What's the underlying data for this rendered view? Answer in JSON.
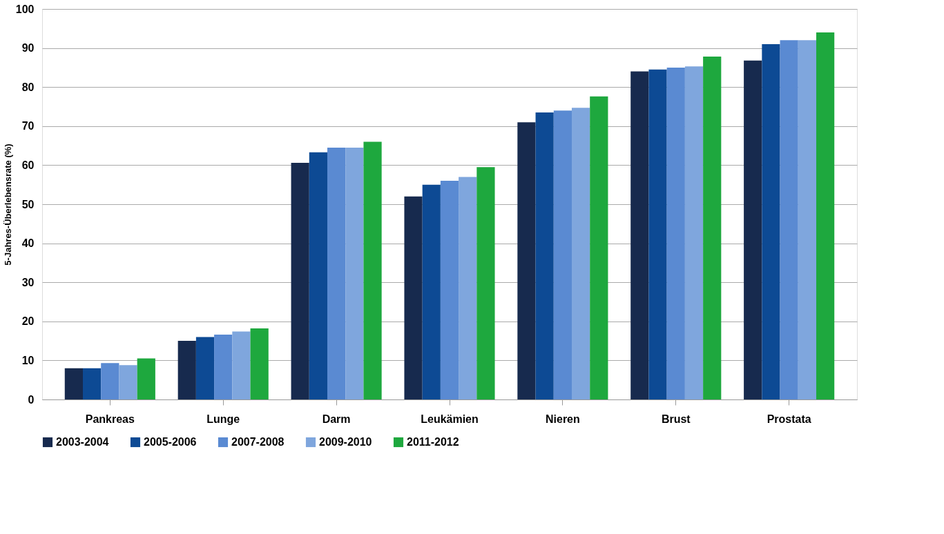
{
  "chart_data": {
    "type": "bar",
    "ylabel": "5-Jahres-Überlebensrate (%)",
    "categories": [
      "Pankreas",
      "Lunge",
      "Darm",
      "Leukämien",
      "Nieren",
      "Brust",
      "Prostata"
    ],
    "series": [
      {
        "name": "2003-2004",
        "color": "#172a4e",
        "values": [
          8,
          15,
          60.6,
          52,
          71,
          84,
          86.8
        ]
      },
      {
        "name": "2005-2006",
        "color": "#0d4a94",
        "values": [
          8,
          16,
          63.3,
          55,
          73.5,
          84.5,
          91
        ]
      },
      {
        "name": "2007-2008",
        "color": "#5a8ad2",
        "values": [
          9.3,
          16.6,
          64.5,
          56,
          74,
          85,
          92
        ]
      },
      {
        "name": "2009-2010",
        "color": "#7fa6dd",
        "values": [
          8.8,
          17.4,
          64.5,
          57,
          74.7,
          85.3,
          92
        ]
      },
      {
        "name": "2011-2012",
        "color": "#1ea83e",
        "values": [
          10.5,
          18.2,
          66,
          59.5,
          77.6,
          87.8,
          94
        ]
      }
    ],
    "ylim": [
      0,
      100
    ],
    "yticks": [
      0,
      10,
      20,
      30,
      40,
      50,
      60,
      70,
      80,
      90,
      100
    ],
    "grid": "y",
    "legend": "bottom"
  }
}
